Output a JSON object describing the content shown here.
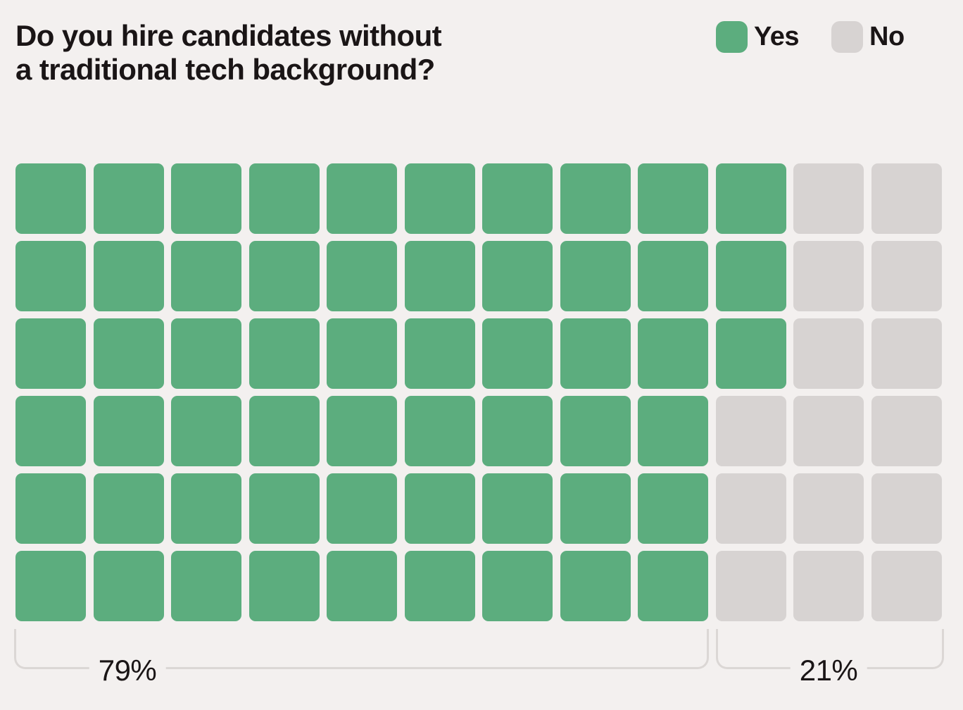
{
  "title": {
    "line1": "Do you hire candidates without",
    "line2": "a traditional tech background?"
  },
  "legend": {
    "items": [
      {
        "label": "Yes",
        "color": "#5cad7e"
      },
      {
        "label": "No",
        "color": "#d7d3d2"
      }
    ]
  },
  "chart_data": {
    "type": "waffle",
    "title": "Do you hire candidates without a traditional tech background?",
    "categories": [
      "Yes",
      "No"
    ],
    "values": [
      79,
      21
    ],
    "unit": "percent",
    "value_labels": {
      "yes": "79%",
      "no": "21%"
    },
    "grid": {
      "rows": 6,
      "cols": 12,
      "total_cells": 72,
      "yes_cells": 57,
      "no_cells": 15,
      "yes_cells_per_row": [
        10,
        10,
        10,
        9,
        9,
        9
      ]
    },
    "colors": {
      "yes": "#5cad7e",
      "no": "#d7d3d2",
      "background": "#f3f0ef",
      "bracket": "#dbd7d5",
      "text": "#1a1516"
    },
    "legend_position": "top-right",
    "legend_entries": [
      "Yes",
      "No"
    ]
  }
}
